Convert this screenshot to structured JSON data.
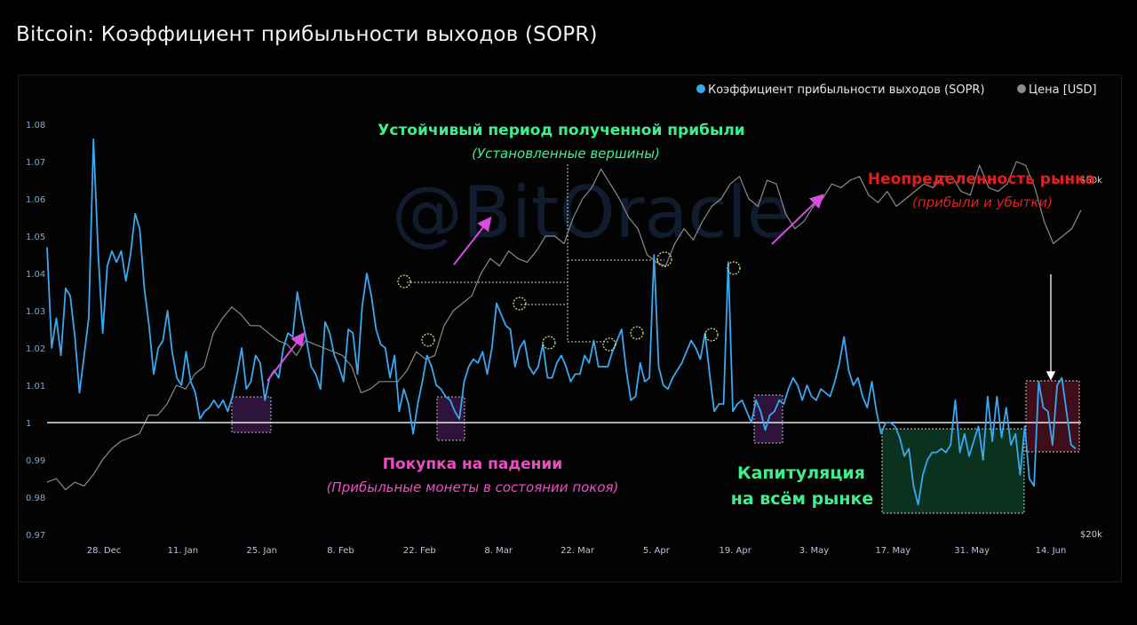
{
  "title": "Bitcoin: Коэффициент прибыльности выходов (SOPR)",
  "watermark": "@BitOracle",
  "legend": [
    {
      "label": "Коэффициент прибыльности выходов (SOPR)",
      "color": "#3aa8f0"
    },
    {
      "label": "Цена [USD]",
      "color": "#8a8a8a"
    }
  ],
  "annotations": {
    "profit_title": "Устойчивый период полученной прибыли",
    "profit_sub": "(Установленные вершины)",
    "uncertainty_title": "Неопределенность рынка",
    "uncertainty_sub": "(прибыли и убытки)",
    "dip_title": "Покупка на падении",
    "dip_sub": "(Прибыльные монеты в состоянии покоя)",
    "capitulation_line1": "Капитуляция",
    "capitulation_line2": "на всём рынке"
  },
  "colors": {
    "sopr": "#3aa8f0",
    "price": "#8a8a8a",
    "baseline": "#e8e8e8",
    "profit_green": "#3ef08c",
    "uncertainty_red": "#e02020",
    "dip_pink": "#f04cc8",
    "arrow": "#d84ce0",
    "capitulation_fill": "#0d3a24",
    "box_purple": "#3a1848",
    "box_red": "#4a1020"
  },
  "chart_data": {
    "type": "line",
    "x_tick_labels": [
      "28. Dec",
      "11. Jan",
      "25. Jan",
      "8. Feb",
      "22. Feb",
      "8. Mar",
      "22. Mar",
      "5. Apr",
      "19. Apr",
      "3. May",
      "17. May",
      "31. May",
      "14. Jun"
    ],
    "y_left": {
      "ticks": [
        "0.97",
        "0.98",
        "0.99",
        "1",
        "1.01",
        "1.02",
        "1.03",
        "1.04",
        "1.05",
        "1.06",
        "1.07",
        "1.08"
      ],
      "range": [
        0.97,
        1.085
      ]
    },
    "y_right": {
      "ticks": [
        "$20k",
        "$60k"
      ]
    },
    "baseline": 1.0,
    "series": [
      {
        "name": "Коэффициент прибыльности выходов (SOPR)",
        "axis": "left",
        "values": [
          1.047,
          1.02,
          1.028,
          1.018,
          1.036,
          1.034,
          1.023,
          1.008,
          1.018,
          1.028,
          1.076,
          1.046,
          1.024,
          1.042,
          1.046,
          1.043,
          1.046,
          1.038,
          1.045,
          1.056,
          1.052,
          1.036,
          1.026,
          1.013,
          1.02,
          1.022,
          1.03,
          1.019,
          1.012,
          1.01,
          1.019,
          1.011,
          1.008,
          1.001,
          1.003,
          1.004,
          1.006,
          1.004,
          1.006,
          1.003,
          1.007,
          1.013,
          1.02,
          1.009,
          1.011,
          1.018,
          1.016,
          1.006,
          1.012,
          1.014,
          1.012,
          1.02,
          1.024,
          1.023,
          1.035,
          1.028,
          1.022,
          1.015,
          1.013,
          1.009,
          1.027,
          1.024,
          1.018,
          1.015,
          1.011,
          1.025,
          1.024,
          1.013,
          1.031,
          1.04,
          1.034,
          1.025,
          1.021,
          1.02,
          1.012,
          1.018,
          1.003,
          1.009,
          1.005,
          0.997,
          1.005,
          1.011,
          1.018,
          1.015,
          1.01,
          1.009,
          1.007,
          1.006,
          1.003,
          1.001,
          1.011,
          1.015,
          1.017,
          1.016,
          1.019,
          1.013,
          1.02,
          1.032,
          1.029,
          1.026,
          1.025,
          1.015,
          1.02,
          1.022,
          1.015,
          1.013,
          1.015,
          1.021,
          1.012,
          1.012,
          1.016,
          1.018,
          1.015,
          1.011,
          1.013,
          1.013,
          1.018,
          1.016,
          1.022,
          1.015,
          1.015,
          1.015,
          1.019,
          1.022,
          1.025,
          1.014,
          1.006,
          1.007,
          1.016,
          1.011,
          1.012,
          1.045,
          1.015,
          1.01,
          1.009,
          1.012,
          1.014,
          1.016,
          1.019,
          1.022,
          1.02,
          1.017,
          1.024,
          1.013,
          1.003,
          1.005,
          1.005,
          1.043,
          1.003,
          1.005,
          1.006,
          1.003,
          1.0,
          1.006,
          1.003,
          0.998,
          1.002,
          1.003,
          1.006,
          1.005,
          1.009,
          1.012,
          1.01,
          1.006,
          1.01,
          1.007,
          1.006,
          1.009,
          1.008,
          1.007,
          1.011,
          1.016,
          1.023,
          1.014,
          1.01,
          1.012,
          1.007,
          1.004,
          1.011,
          1.003,
          0.997,
          1.0,
          1.0,
          0.999,
          0.996,
          0.991,
          0.993,
          0.983,
          0.978,
          0.986,
          0.99,
          0.992,
          0.992,
          0.993,
          0.992,
          0.994,
          1.006,
          0.992,
          0.997,
          0.991,
          0.995,
          0.999,
          0.99,
          1.007,
          0.995,
          1.007,
          0.996,
          1.004,
          0.994,
          0.997,
          0.986,
          0.999,
          0.985,
          0.983,
          1.011,
          1.004,
          1.003,
          0.994,
          1.01,
          1.012,
          1.003,
          0.994,
          0.993
        ]
      },
      {
        "name": "Цена [USD]",
        "axis": "right",
        "values": [
          0.984,
          0.985,
          0.982,
          0.984,
          0.983,
          0.986,
          0.99,
          0.993,
          0.995,
          0.996,
          0.997,
          1.002,
          1.002,
          1.005,
          1.01,
          1.009,
          1.013,
          1.015,
          1.024,
          1.028,
          1.031,
          1.029,
          1.026,
          1.026,
          1.024,
          1.022,
          1.021,
          1.018,
          1.022,
          1.021,
          1.02,
          1.019,
          1.018,
          1.015,
          1.008,
          1.009,
          1.011,
          1.011,
          1.011,
          1.014,
          1.019,
          1.017,
          1.018,
          1.026,
          1.03,
          1.032,
          1.034,
          1.04,
          1.044,
          1.042,
          1.046,
          1.044,
          1.043,
          1.046,
          1.05,
          1.05,
          1.048,
          1.055,
          1.06,
          1.063,
          1.068,
          1.064,
          1.06,
          1.055,
          1.052,
          1.045,
          1.043,
          1.042,
          1.048,
          1.052,
          1.049,
          1.054,
          1.058,
          1.06,
          1.064,
          1.066,
          1.06,
          1.058,
          1.065,
          1.064,
          1.056,
          1.052,
          1.054,
          1.058,
          1.06,
          1.064,
          1.063,
          1.065,
          1.066,
          1.061,
          1.059,
          1.062,
          1.058,
          1.06,
          1.062,
          1.064,
          1.063,
          1.066,
          1.066,
          1.062,
          1.061,
          1.069,
          1.063,
          1.062,
          1.064,
          1.07,
          1.069,
          1.063,
          1.054,
          1.048,
          1.05,
          1.052,
          1.057
        ]
      }
    ]
  }
}
